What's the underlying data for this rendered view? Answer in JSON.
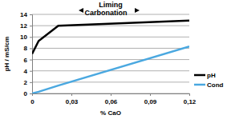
{
  "chart_data": {
    "type": "line",
    "title": "Liming",
    "subtitle": "Carbonation",
    "x_label": "% CaO",
    "y_label": "pH / mS/cm",
    "x": [
      0,
      0.005,
      0.02,
      0.12
    ],
    "series": [
      {
        "name": "pH",
        "color": "#000000",
        "values": [
          7,
          9.3,
          12,
          12.9
        ]
      },
      {
        "name": "Cond",
        "color": "#4aa8e0",
        "values": [
          0,
          0.3,
          1.4,
          8.3
        ]
      }
    ],
    "xlim": [
      0,
      0.12
    ],
    "xticks": [
      0,
      {
        "value": 0.03,
        "label": "0,03"
      },
      {
        "value": 0.06,
        "label": "0,06"
      },
      {
        "value": 0.09,
        "label": "0,09"
      },
      {
        "value": 0.12,
        "label": "0,12"
      }
    ],
    "ylim": [
      0,
      14
    ],
    "yticks": [
      0,
      2,
      4,
      6,
      8,
      10,
      12,
      14
    ],
    "grid": true,
    "legend": "right"
  }
}
